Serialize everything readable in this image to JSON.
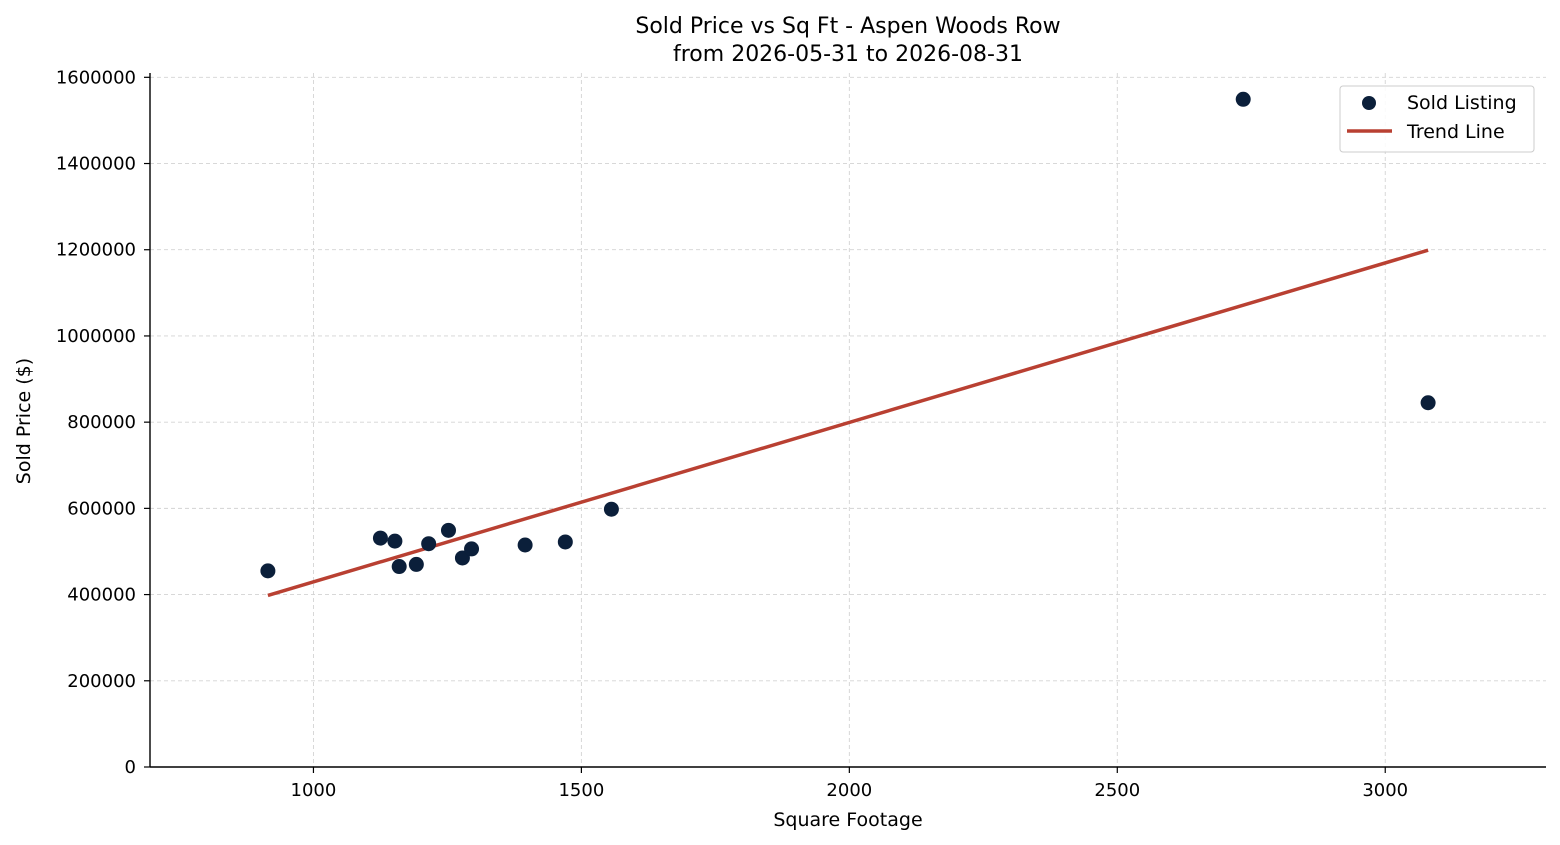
{
  "chart_data": {
    "type": "scatter",
    "title": "Sold Price vs Sq Ft - Aspen Woods Row",
    "subtitle": "from 2026-05-31 to 2026-08-31",
    "xlabel": "Square Footage",
    "ylabel": "Sold Price ($)",
    "xlim": [
      695,
      3300
    ],
    "ylim": [
      0,
      1610000
    ],
    "x_ticks": [
      1000,
      1500,
      2000,
      2500,
      3000
    ],
    "y_ticks": [
      0,
      200000,
      400000,
      600000,
      800000,
      1000000,
      1200000,
      1400000,
      1600000
    ],
    "grid": true,
    "legend_position": "top-right",
    "series": [
      {
        "name": "Sold Listing",
        "kind": "scatter",
        "color": "#0b1f3a",
        "points": [
          {
            "x": 915,
            "y": 455000
          },
          {
            "x": 1125,
            "y": 531000
          },
          {
            "x": 1152,
            "y": 524000
          },
          {
            "x": 1160,
            "y": 465000
          },
          {
            "x": 1192,
            "y": 470000
          },
          {
            "x": 1215,
            "y": 518000
          },
          {
            "x": 1252,
            "y": 549000
          },
          {
            "x": 1278,
            "y": 485000
          },
          {
            "x": 1295,
            "y": 506000
          },
          {
            "x": 1395,
            "y": 515000
          },
          {
            "x": 1470,
            "y": 522000
          },
          {
            "x": 1556,
            "y": 598000
          },
          {
            "x": 2735,
            "y": 1549000
          },
          {
            "x": 3080,
            "y": 845000
          }
        ]
      },
      {
        "name": "Trend Line",
        "kind": "line",
        "color": "#b94032",
        "points": [
          {
            "x": 915,
            "y": 398000
          },
          {
            "x": 3080,
            "y": 1199000
          }
        ]
      }
    ]
  }
}
